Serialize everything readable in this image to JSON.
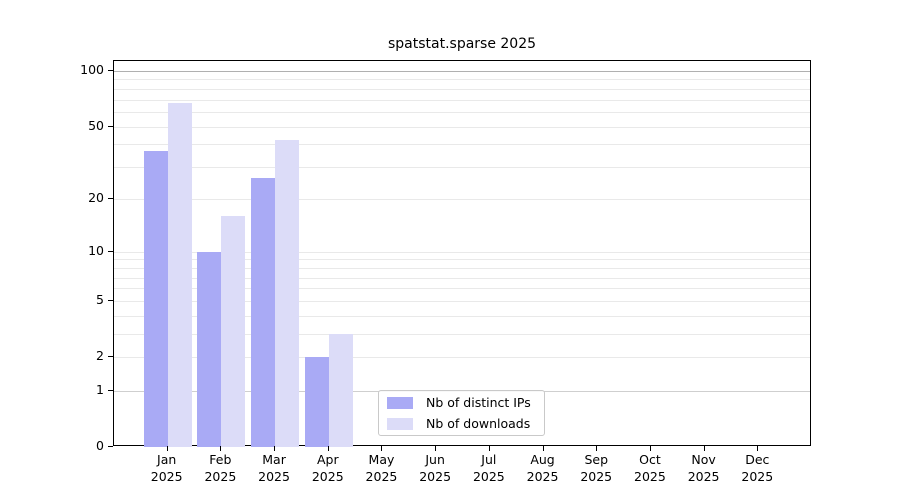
{
  "chart_data": {
    "type": "bar",
    "title": "spatstat.sparse 2025",
    "xlabel": "",
    "ylabel": "",
    "categories": [
      "Jan 2025",
      "Feb 2025",
      "Mar 2025",
      "Apr 2025",
      "May 2025",
      "Jun 2025",
      "Jul 2025",
      "Aug 2025",
      "Sep 2025",
      "Oct 2025",
      "Nov 2025",
      "Dec 2025"
    ],
    "series": [
      {
        "name": "Nb of distinct IPs",
        "color": "#a9aaf5",
        "values": [
          37,
          10,
          26,
          2,
          0,
          0,
          0,
          0,
          0,
          0,
          0,
          0
        ]
      },
      {
        "name": "Nb of downloads",
        "color": "#dcdcf8",
        "values": [
          67,
          16,
          42,
          3,
          0,
          0,
          0,
          0,
          0,
          0,
          0,
          0
        ]
      }
    ],
    "yscale": "log1p",
    "yticks": [
      0,
      1,
      2,
      5,
      10,
      20,
      50,
      100
    ],
    "minor_yticks": [
      3,
      4,
      6,
      7,
      8,
      9,
      30,
      40,
      60,
      70,
      80,
      90
    ],
    "ylim": [
      0,
      113
    ],
    "grid": true,
    "legend_position": "lower center"
  }
}
